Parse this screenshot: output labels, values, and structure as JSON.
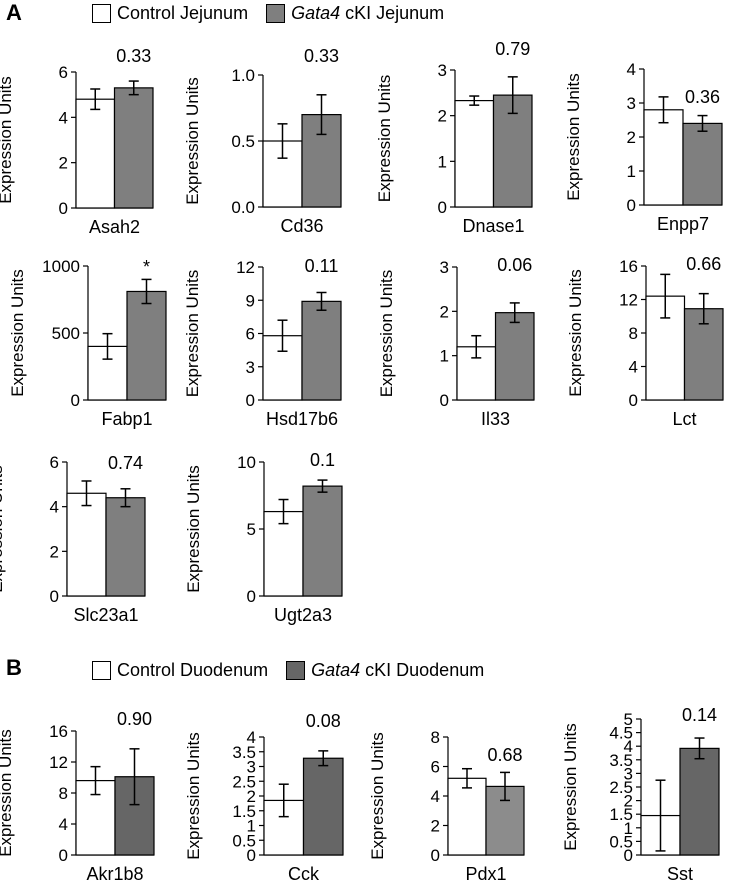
{
  "panel_a": {
    "letter": "A",
    "legend_control": "Control Jejunum",
    "legend_cki_gene": "Gata4",
    "legend_cki_rest": " cKI Jejunum"
  },
  "panel_b": {
    "letter": "B",
    "legend_control": "Control Duodenum",
    "legend_cki_gene": "Gata4",
    "legend_cki_rest": " cKI Duodenum"
  },
  "colors": {
    "control": "#ffffff",
    "cki_a": "#7f7f7f",
    "cki_b": "#666666",
    "cki_pdx1": "#8c8c8c"
  },
  "chart_data": [
    {
      "type": "bar",
      "panel": "A",
      "xlabel": "Asah2",
      "ylabel": "Expression Units",
      "ylim": [
        0,
        6
      ],
      "yticks": [
        "0",
        "2",
        "4",
        "6"
      ],
      "categories": [
        "Control Jejunum",
        "Gata4 cKI Jejunum"
      ],
      "values": [
        4.8,
        5.3
      ],
      "errors": [
        0.45,
        0.3
      ],
      "annotation": "0.33"
    },
    {
      "type": "bar",
      "panel": "A",
      "xlabel": "Cd36",
      "ylabel": "Expression Units",
      "ylim": [
        0,
        1
      ],
      "yticks": [
        "0.0",
        "0.5",
        "1.0"
      ],
      "categories": [
        "Control Jejunum",
        "Gata4 cKI Jejunum"
      ],
      "values": [
        0.5,
        0.7
      ],
      "errors": [
        0.13,
        0.15
      ],
      "annotation": "0.33"
    },
    {
      "type": "bar",
      "panel": "A",
      "xlabel": "Dnase1",
      "ylabel": "Expression Units",
      "ylim": [
        0,
        3
      ],
      "yticks": [
        "0",
        "1",
        "2",
        "3"
      ],
      "categories": [
        "Control Jejunum",
        "Gata4 cKI Jejunum"
      ],
      "values": [
        2.33,
        2.45
      ],
      "errors": [
        0.1,
        0.4
      ],
      "annotation": "0.79"
    },
    {
      "type": "bar",
      "panel": "A",
      "xlabel": "Enpp7",
      "ylabel": "Expression Units",
      "ylim": [
        0,
        4
      ],
      "yticks": [
        "0",
        "1",
        "2",
        "3",
        "4"
      ],
      "categories": [
        "Control Jejunum",
        "Gata4 cKI Jejunum"
      ],
      "values": [
        2.8,
        2.4
      ],
      "errors": [
        0.38,
        0.23
      ],
      "annotation": "0.36"
    },
    {
      "type": "bar",
      "panel": "A",
      "xlabel": "Fabp1",
      "ylabel": "Expression Units",
      "ylim": [
        0,
        1000
      ],
      "yticks": [
        "0",
        "500",
        "1000"
      ],
      "categories": [
        "Control Jejunum",
        "Gata4 cKI Jejunum"
      ],
      "values": [
        400,
        810
      ],
      "errors": [
        95,
        90
      ],
      "annotation": "*"
    },
    {
      "type": "bar",
      "panel": "A",
      "xlabel": "Hsd17b6",
      "ylabel": "Expression Units",
      "ylim": [
        0,
        12
      ],
      "yticks": [
        "0",
        "3",
        "6",
        "9",
        "12"
      ],
      "categories": [
        "Control Jejunum",
        "Gata4 cKI Jejunum"
      ],
      "values": [
        5.8,
        8.9
      ],
      "errors": [
        1.4,
        0.8
      ],
      "annotation": "0.11"
    },
    {
      "type": "bar",
      "panel": "A",
      "xlabel": "Il33",
      "ylabel": "Expression Units",
      "ylim": [
        0,
        3
      ],
      "yticks": [
        "0",
        "1",
        "2",
        "3"
      ],
      "categories": [
        "Control Jejunum",
        "Gata4 cKI Jejunum"
      ],
      "values": [
        1.2,
        1.97
      ],
      "errors": [
        0.25,
        0.22
      ],
      "annotation": "0.06"
    },
    {
      "type": "bar",
      "panel": "A",
      "xlabel": "Lct",
      "ylabel": "Expression Units",
      "ylim": [
        0,
        16
      ],
      "yticks": [
        "0",
        "4",
        "8",
        "12",
        "16"
      ],
      "categories": [
        "Control Jejunum",
        "Gata4 cKI Jejunum"
      ],
      "values": [
        12.4,
        10.9
      ],
      "errors": [
        2.6,
        1.8
      ],
      "annotation": "0.66"
    },
    {
      "type": "bar",
      "panel": "A",
      "xlabel": "Slc23a1",
      "ylabel": "Expression Units",
      "ylim": [
        0,
        6
      ],
      "yticks": [
        "0",
        "2",
        "4",
        "6"
      ],
      "categories": [
        "Control Jejunum",
        "Gata4 cKI Jejunum"
      ],
      "values": [
        4.6,
        4.4
      ],
      "errors": [
        0.55,
        0.4
      ],
      "annotation": "0.74"
    },
    {
      "type": "bar",
      "panel": "A",
      "xlabel": "Ugt2a3",
      "ylabel": "Expression Units",
      "ylim": [
        0,
        10
      ],
      "yticks": [
        "0",
        "5",
        "10"
      ],
      "categories": [
        "Control Jejunum",
        "Gata4 cKI Jejunum"
      ],
      "values": [
        6.3,
        8.2
      ],
      "errors": [
        0.9,
        0.45
      ],
      "annotation": "0.1"
    },
    {
      "type": "bar",
      "panel": "B",
      "xlabel": "Akr1b8",
      "ylabel": "Expression Units",
      "ylim": [
        0,
        16
      ],
      "yticks": [
        "0",
        "4",
        "8",
        "12",
        "16"
      ],
      "categories": [
        "Control Duodenum",
        "Gata4 cKI Duodenum"
      ],
      "values": [
        9.6,
        10.1
      ],
      "errors": [
        1.8,
        3.6
      ],
      "annotation": "0.90"
    },
    {
      "type": "bar",
      "panel": "B",
      "xlabel": "Cck",
      "ylabel": "Expression Units",
      "ylim": [
        0,
        4
      ],
      "yticks": [
        "0",
        "0.5",
        "1",
        "1.5",
        "2",
        "2.5",
        "3",
        "3.5",
        "4"
      ],
      "categories": [
        "Control Duodenum",
        "Gata4 cKI Duodenum"
      ],
      "values": [
        1.85,
        3.28
      ],
      "errors": [
        0.55,
        0.25
      ],
      "annotation": "0.08"
    },
    {
      "type": "bar",
      "panel": "B",
      "xlabel": "Pdx1",
      "ylabel": "Expression Units",
      "ylim": [
        0,
        8
      ],
      "yticks": [
        "0",
        "2",
        "4",
        "6",
        "8"
      ],
      "categories": [
        "Control Duodenum",
        "Gata4 cKI Duodenum"
      ],
      "values": [
        5.2,
        4.65
      ],
      "errors": [
        0.65,
        0.95
      ],
      "annotation": "0.68"
    },
    {
      "type": "bar",
      "panel": "B",
      "xlabel": "Sst",
      "ylabel": "Expression Units",
      "ylim": [
        0,
        5
      ],
      "yticks": [
        "0",
        "0.5",
        "1",
        "1.5",
        "2",
        "2.5",
        "3",
        "3.5",
        "4",
        "4.5",
        "5"
      ],
      "categories": [
        "Control Duodenum",
        "Gata4 cKI Duodenum"
      ],
      "values": [
        1.45,
        3.92
      ],
      "errors": [
        1.3,
        0.38
      ],
      "annotation": "0.14"
    }
  ]
}
